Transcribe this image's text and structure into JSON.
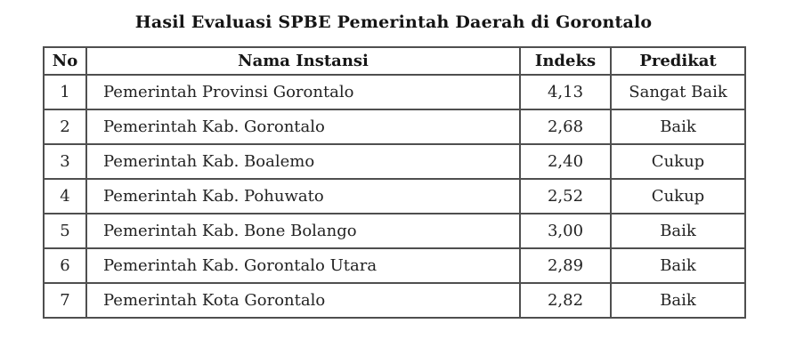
{
  "title": "Hasil Evaluasi SPBE Pemerintah Daerah di Gorontalo",
  "table": {
    "columns": [
      "No",
      "Nama Instansi",
      "Indeks",
      "Predikat"
    ],
    "rows": [
      {
        "no": "1",
        "instansi": "Pemerintah Provinsi Gorontalo",
        "indeks": "4,13",
        "predikat": "Sangat Baik"
      },
      {
        "no": "2",
        "instansi": "Pemerintah Kab. Gorontalo",
        "indeks": "2,68",
        "predikat": "Baik"
      },
      {
        "no": "3",
        "instansi": "Pemerintah Kab. Boalemo",
        "indeks": "2,40",
        "predikat": "Cukup"
      },
      {
        "no": "4",
        "instansi": "Pemerintah Kab. Pohuwato",
        "indeks": "2,52",
        "predikat": "Cukup"
      },
      {
        "no": "5",
        "instansi": "Pemerintah Kab. Bone Bolango",
        "indeks": "3,00",
        "predikat": "Baik"
      },
      {
        "no": "6",
        "instansi": "Pemerintah Kab. Gorontalo Utara",
        "indeks": "2,89",
        "predikat": "Baik"
      },
      {
        "no": "7",
        "instansi": "Pemerintah Kota Gorontalo",
        "indeks": "2,82",
        "predikat": "Baik"
      }
    ]
  },
  "colors": {
    "background": "#ffffff",
    "text": "#222222",
    "border": "#4f4f4f"
  }
}
